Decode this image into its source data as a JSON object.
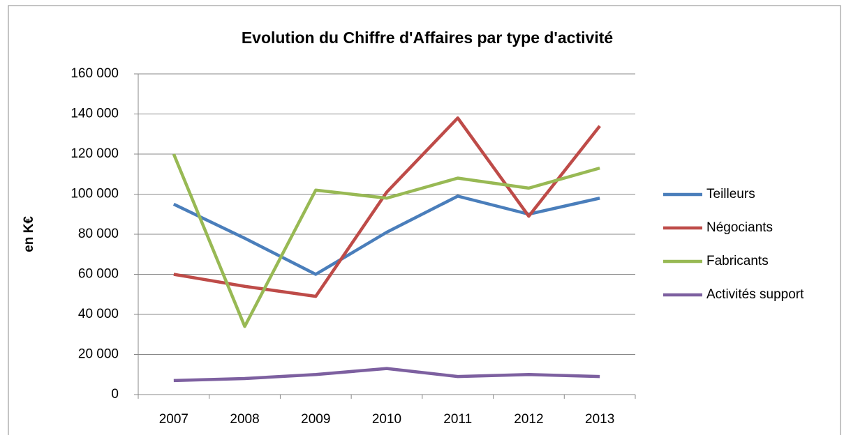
{
  "chart_data": {
    "type": "line",
    "title": "Evolution du Chiffre d'Affaires par type d'activité",
    "y_label": "en K€",
    "categories": [
      "2007",
      "2008",
      "2009",
      "2010",
      "2011",
      "2012",
      "2013"
    ],
    "series": [
      {
        "name": "Teilleurs",
        "color": "#4a7ebb",
        "values": [
          95000,
          78000,
          60000,
          81000,
          99000,
          90000,
          98000
        ]
      },
      {
        "name": "Négociants",
        "color": "#be4b48",
        "values": [
          60000,
          54000,
          49000,
          101000,
          138000,
          89000,
          134000
        ]
      },
      {
        "name": "Fabricants",
        "color": "#98b954",
        "values": [
          120000,
          34000,
          102000,
          98000,
          108000,
          103000,
          113000
        ]
      },
      {
        "name": "Activités support",
        "color": "#7d60a0",
        "values": [
          7000,
          8000,
          10000,
          13000,
          9000,
          10000,
          9000
        ]
      }
    ],
    "ylim": [
      0,
      160000
    ],
    "yticks": [
      0,
      {
        "value": 20000,
        "label": "20 000"
      },
      {
        "value": 40000,
        "label": "40 000"
      },
      {
        "value": 60000,
        "label": "60 000"
      },
      {
        "value": 80000,
        "label": "80 000"
      },
      {
        "value": 100000,
        "label": "100 000"
      },
      {
        "value": 120000,
        "label": "120 000"
      },
      {
        "value": 140000,
        "label": "140 000"
      },
      {
        "value": 160000,
        "label": "160 000"
      }
    ],
    "grid": true,
    "legend": "right"
  }
}
